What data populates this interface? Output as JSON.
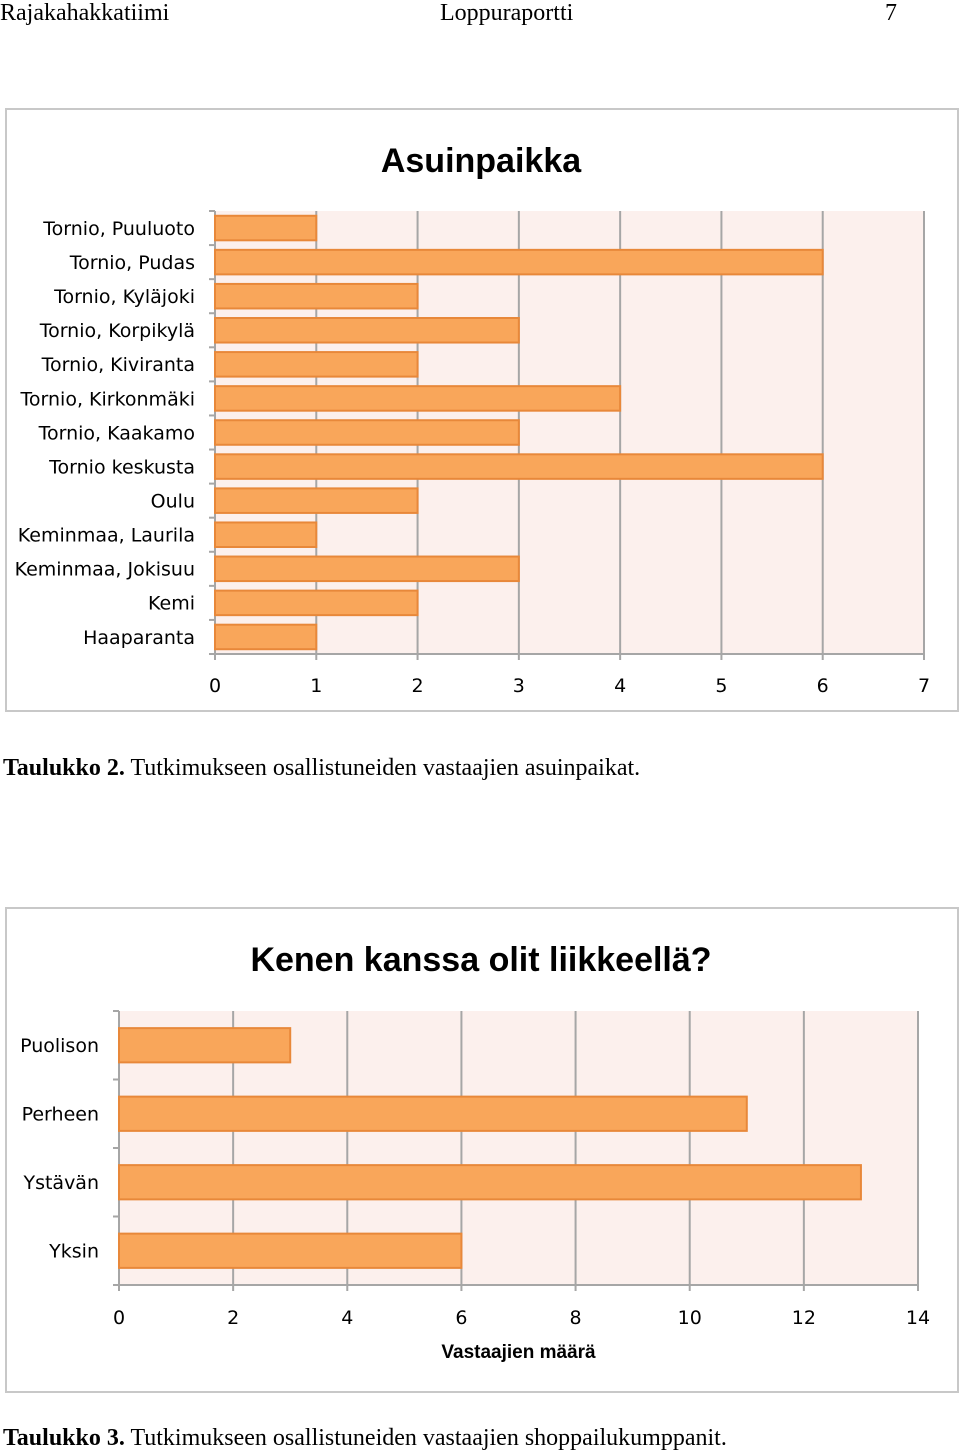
{
  "header": {
    "left": "Rajakahakkatiimi",
    "center": "Loppuraportti",
    "page_number": "7"
  },
  "chart_data": [
    {
      "type": "bar",
      "orientation": "horizontal",
      "title": "Asuinpaikka",
      "xlabel": "",
      "ylabel": "",
      "categories": [
        "Tornio, Puuluoto",
        "Tornio, Pudas",
        "Tornio, Kyläjoki",
        "Tornio, Korpikylä",
        "Tornio, Kiviranta",
        "Tornio, Kirkonmäki",
        "Tornio, Kaakamo",
        "Tornio keskusta",
        "Oulu",
        "Keminmaa, Laurila",
        "Keminmaa, Jokisuu",
        "Kemi",
        "Haaparanta"
      ],
      "values": [
        1,
        6,
        2,
        3,
        2,
        4,
        3,
        6,
        2,
        1,
        3,
        2,
        1
      ],
      "xlim": [
        0,
        7
      ],
      "xticks": [
        "0",
        "1",
        "2",
        "3",
        "4",
        "5",
        "6",
        "7"
      ],
      "grid": true,
      "colors": {
        "bar": "#f9a65a",
        "bar_edge": "#e8883a",
        "plot_bg": "#fcf0ed",
        "grid": "#a6a6a6"
      }
    },
    {
      "type": "bar",
      "orientation": "horizontal",
      "title": "Kenen kanssa olit liikkeellä?",
      "xlabel": "Vastaajien määrä",
      "ylabel": "",
      "categories": [
        "Puolison",
        "Perheen",
        "Ystävän",
        "Yksin"
      ],
      "values": [
        3,
        11,
        13,
        6
      ],
      "xlim": [
        0,
        14
      ],
      "xticks": [
        "0",
        "2",
        "4",
        "6",
        "8",
        "10",
        "12",
        "14"
      ],
      "grid": true,
      "colors": {
        "bar": "#f9a65a",
        "bar_edge": "#e8883a",
        "plot_bg": "#fcf0ed",
        "grid": "#a6a6a6"
      }
    }
  ],
  "captions": [
    {
      "label": "Taulukko 2.",
      "text": " Tutkimukseen osallistuneiden vastaajien asuinpaikat."
    },
    {
      "label": "Taulukko 3.",
      "text": " Tutkimukseen osallistuneiden vastaajien shoppailukumppanit."
    }
  ]
}
